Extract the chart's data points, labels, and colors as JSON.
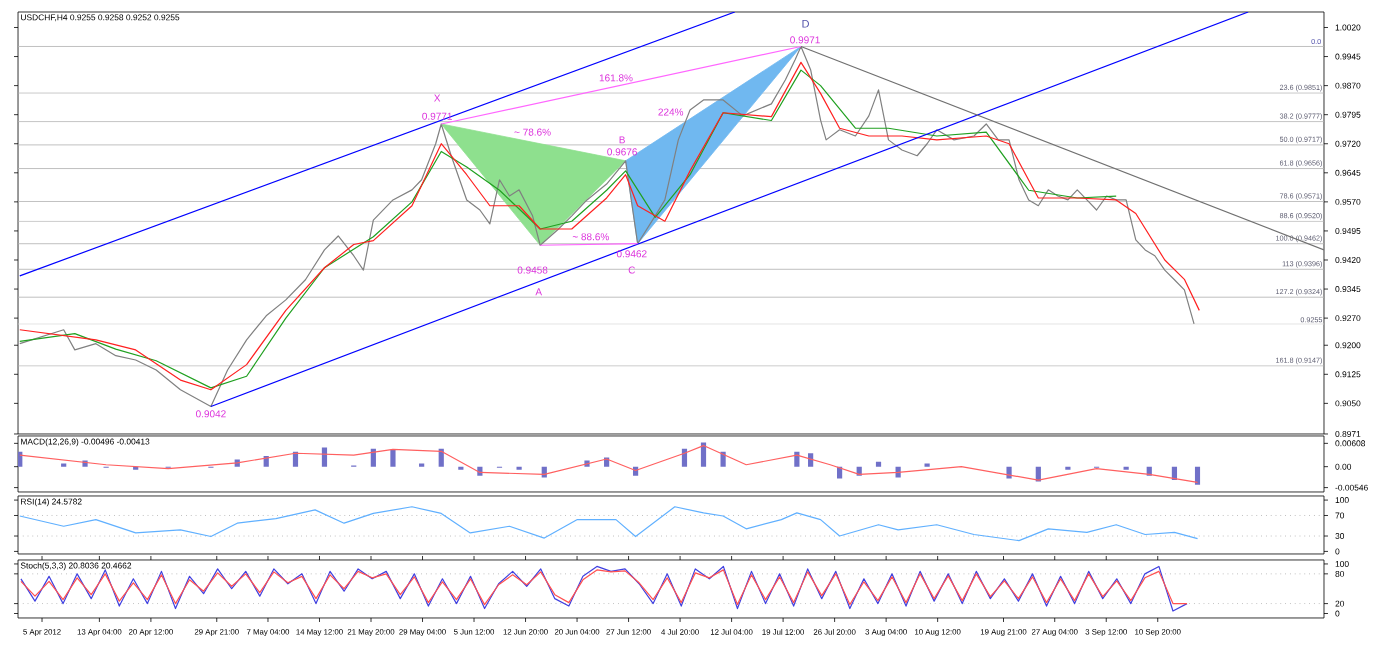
{
  "chart_data": [
    {
      "type": "line",
      "title": "USDCHF,H4 0.9255 0.9258 0.9252 0.9255",
      "xlim": [
        "2012-04-01T14:00",
        "2012-10-04T12:00"
      ],
      "ylim": [
        0.8971,
        1.006
      ],
      "tick_labels": "y",
      "yticks": [
        {
          "value": 1.002,
          "label": "1.0020"
        },
        0.9945,
        {
          "value": 0.987,
          "label": "0.9870"
        },
        0.9795,
        {
          "value": 0.972,
          "label": "0.9720"
        },
        0.9645,
        {
          "value": 0.957,
          "label": "0.9570"
        },
        0.9495,
        {
          "value": 0.942,
          "label": "0.9420"
        },
        0.9345,
        {
          "value": 0.927,
          "label": "0.9270"
        },
        {
          "value": 0.92,
          "label": "0.9200"
        },
        0.9125,
        {
          "value": 0.905,
          "label": "0.9050"
        },
        0.8971
      ],
      "series": [
        {
          "type": "area",
          "color": "#8ee08e",
          "x": [
            "2012-05-31T20:00",
            "2012-06-14T22:00",
            "2012-06-27T02:00"
          ],
          "values": [
            0.9771,
            0.9458,
            0.9676
          ]
        },
        {
          "type": "area",
          "color": "#70b8f0",
          "x": [
            "2012-06-27T02:00",
            "2012-06-28T19:00",
            "2012-07-22T01:00"
          ],
          "values": [
            0.9676,
            0.9462,
            0.9971
          ]
        },
        {
          "color": "#808080",
          "x": [
            "2012-04-01T20:00",
            "2012-04-08T02:00",
            "2012-04-09T16:00",
            "2012-04-12T16:00",
            "2012-04-15T12:00",
            "2012-04-18T08:00",
            "2012-04-21T06:00",
            "2012-04-24T17:00",
            "2012-04-29T01:00",
            "2012-05-01T10:00",
            "2012-05-04T03:00",
            "2012-05-06T22:00",
            "2012-05-09T17:00",
            "2012-05-12T12:00",
            "2012-05-15T05:00",
            "2012-05-17T04:00",
            "2012-05-19T09:00",
            "2012-05-20T18:00",
            "2012-05-22T04:00",
            "2012-05-24T23:00",
            "2012-05-27T16:00",
            "2012-05-29T01:00",
            "2012-05-31T01:00",
            "2012-05-31T20:00",
            "2012-06-02T06:00",
            "2012-06-04T11:00",
            "2012-06-06T08:00",
            "2012-06-07T18:00",
            "2012-06-09T03:00",
            "2012-06-10T13:00",
            "2012-06-11T22:00",
            "2012-06-13T20:00",
            "2012-06-14T22:00",
            "2012-06-17T10:00",
            "2012-06-19T10:00",
            "2012-06-21T14:00",
            "2012-06-24T09:00",
            "2012-06-27T02:00",
            "2012-06-28T19:00",
            "2012-07-01T07:00",
            "2012-07-02T16:00",
            "2012-07-04T14:00",
            "2012-07-06T06:00",
            "2012-07-08T04:00",
            "2012-07-10T23:00",
            "2012-07-13T18:00",
            "2012-07-17T20:00",
            "2012-07-19T20:00",
            "2012-07-21T05:00",
            "2012-07-22T01:00",
            "2012-07-23T10:00",
            "2012-07-24T20:00",
            "2012-07-25T15:00",
            "2012-07-27T13:00",
            "2012-07-29T19:00",
            "2012-07-31T17:00",
            "2012-08-02T02:00",
            "2012-08-03T12:00",
            "2012-08-05T10:00",
            "2012-08-07T14:00",
            "2012-08-09T00:00",
            "2012-08-10T09:00",
            "2012-08-12T20:00",
            "2012-08-15T16:00",
            "2012-08-17T10:00",
            "2012-08-19T03:00",
            "2012-08-20T16:00",
            "2012-08-22T02:00",
            "2012-08-23T11:00",
            "2012-08-24T20:00",
            "2012-08-26T06:00",
            "2012-08-27T15:00",
            "2012-08-29T01:00",
            "2012-08-30T09:00",
            "2012-08-31T18:00",
            "2012-09-02T03:00",
            "2012-09-03T13:00",
            "2012-09-04T22:00",
            "2012-09-06T08:00",
            "2012-09-07T17:00",
            "2012-09-09T01:00",
            "2012-09-10T10:00",
            "2012-09-11T20:00",
            "2012-09-13T05:00",
            "2012-09-14T15:00",
            "2012-09-16T00:00"
          ],
          "values": [
            0.9204,
            0.924,
            0.9188,
            0.9204,
            0.9173,
            0.9162,
            0.9136,
            0.9085,
            0.9042,
            0.9136,
            0.9214,
            0.9276,
            0.9317,
            0.9369,
            0.9446,
            0.9482,
            0.9431,
            0.9394,
            0.9523,
            0.9575,
            0.9601,
            0.9627,
            0.972,
            0.9771,
            0.9689,
            0.9575,
            0.9549,
            0.9513,
            0.9627,
            0.9585,
            0.9601,
            0.9534,
            0.9458,
            0.9498,
            0.9534,
            0.9575,
            0.9616,
            0.9676,
            0.9462,
            0.9534,
            0.9575,
            0.973,
            0.9807,
            0.9833,
            0.9833,
            0.9792,
            0.9823,
            0.9885,
            0.9937,
            0.9971,
            0.9911,
            0.9781,
            0.973,
            0.9756,
            0.974,
            0.9792,
            0.9859,
            0.973,
            0.9704,
            0.9689,
            0.972,
            0.9756,
            0.973,
            0.974,
            0.9771,
            0.973,
            0.973,
            0.9627,
            0.9575,
            0.956,
            0.9601,
            0.9585,
            0.9575,
            0.9601,
            0.9575,
            0.9549,
            0.9585,
            0.9575,
            0.9575,
            0.9472,
            0.9446,
            0.9431,
            0.9394,
            0.9369,
            0.9343,
            0.9255
          ]
        },
        {
          "color": "#20a020",
          "x": [
            "2012-04-01T20:00",
            "2012-04-09T16:00",
            "2012-04-15T12:00",
            "2012-04-21T06:00",
            "2012-04-29T01:00",
            "2012-05-04T03:00",
            "2012-05-09T17:00",
            "2012-05-15T05:00",
            "2012-05-22T04:00",
            "2012-05-27T16:00",
            "2012-05-31T20:00",
            "2012-06-04T11:00",
            "2012-06-09T03:00",
            "2012-06-14T22:00",
            "2012-06-19T10:00",
            "2012-06-24T09:00",
            "2012-06-27T02:00",
            "2012-07-01T07:00",
            "2012-07-06T06:00",
            "2012-07-10T23:00",
            "2012-07-17T20:00",
            "2012-07-22T01:00",
            "2012-07-24T20:00",
            "2012-07-29T19:00",
            "2012-08-03T12:00",
            "2012-08-10T09:00",
            "2012-08-17T10:00",
            "2012-08-23T11:00",
            "2012-08-30T09:00",
            "2012-09-04T22:00"
          ],
          "values": [
            0.921,
            0.923,
            0.919,
            0.916,
            0.909,
            0.912,
            0.927,
            0.94,
            0.948,
            0.957,
            0.97,
            0.966,
            0.96,
            0.95,
            0.952,
            0.96,
            0.965,
            0.953,
            0.964,
            0.98,
            0.978,
            0.991,
            0.987,
            0.976,
            0.976,
            0.974,
            0.975,
            0.96,
            0.958,
            0.9585
          ]
        },
        {
          "color": "#ff2020",
          "x": [
            "2012-04-01T20:00",
            "2012-04-12T16:00",
            "2012-04-18T08:00",
            "2012-04-24T17:00",
            "2012-04-29T01:00",
            "2012-05-04T03:00",
            "2012-05-09T17:00",
            "2012-05-15T05:00",
            "2012-05-19T09:00",
            "2012-05-22T04:00",
            "2012-05-27T16:00",
            "2012-05-31T20:00",
            "2012-06-04T11:00",
            "2012-06-07T18:00",
            "2012-06-11T22:00",
            "2012-06-14T22:00",
            "2012-06-19T10:00",
            "2012-06-24T09:00",
            "2012-06-27T02:00",
            "2012-06-28T19:00",
            "2012-07-02T16:00",
            "2012-07-06T06:00",
            "2012-07-10T23:00",
            "2012-07-17T20:00",
            "2012-07-22T01:00",
            "2012-07-24T20:00",
            "2012-07-27T13:00",
            "2012-07-31T17:00",
            "2012-08-05T10:00",
            "2012-08-10T09:00",
            "2012-08-17T10:00",
            "2012-08-20T16:00",
            "2012-08-24T20:00",
            "2012-08-30T09:00",
            "2012-09-04T22:00",
            "2012-09-07T17:00",
            "2012-09-11T20:00",
            "2012-09-14T15:00",
            "2012-09-16T18:00"
          ],
          "values": [
            0.924,
            0.9214,
            0.9188,
            0.911,
            0.9085,
            0.915,
            0.929,
            0.94,
            0.946,
            0.947,
            0.956,
            0.972,
            0.964,
            0.956,
            0.956,
            0.95,
            0.95,
            0.958,
            0.964,
            0.956,
            0.952,
            0.965,
            0.98,
            0.979,
            0.993,
            0.985,
            0.976,
            0.974,
            0.974,
            0.973,
            0.974,
            0.972,
            0.958,
            0.958,
            0.9575,
            0.954,
            0.942,
            0.937,
            0.929
          ]
        },
        {
          "color": "#0000ff",
          "x": [
            "2012-04-01T20:00",
            "2012-07-12T15:00"
          ],
          "values": [
            0.9379,
            1.006
          ]
        },
        {
          "color": "#0000ff",
          "x": [
            "2012-04-29T01:00",
            "2012-09-23T17:00"
          ],
          "values": [
            0.9042,
            1.006
          ]
        },
        {
          "color": "#707070",
          "x": [
            "2012-07-22T01:00",
            "2012-10-04T12:00"
          ],
          "values": [
            0.9971,
            0.9446
          ]
        },
        {
          "color": "#ff66ff",
          "x": [
            "2012-05-31T20:00",
            "2012-07-22T01:00"
          ],
          "values": [
            0.9771,
            0.9971
          ]
        },
        {
          "color": "#ff66ff",
          "x": [
            "2012-06-14T22:00",
            "2012-06-28T19:00"
          ],
          "values": [
            0.9458,
            0.9462
          ]
        }
      ],
      "ref_lines": [
        {
          "axis": "y",
          "value": 0.9971,
          "color": "#b0b0b0"
        },
        {
          "axis": "y",
          "value": 0.9851,
          "label": "23.6 (0.9851)",
          "color": "#b0b0b0"
        },
        {
          "axis": "y",
          "value": 0.9777,
          "label": "38.2 (0.9777)",
          "color": "#b0b0b0"
        },
        {
          "axis": "y",
          "value": 0.9717,
          "label": "50.0 (0.9717)",
          "color": "#b0b0b0"
        },
        {
          "axis": "y",
          "value": 0.9656,
          "label": "61.8 (0.9656)",
          "color": "#b0b0b0"
        },
        {
          "axis": "y",
          "value": 0.9571,
          "label": "78.6 (0.9571)",
          "color": "#b0b0b0"
        },
        {
          "axis": "y",
          "value": 0.952,
          "label": "88.6 (0.9520)",
          "color": "#b0b0b0"
        },
        {
          "axis": "y",
          "value": 0.9462,
          "label": "100.0 (0.9462)",
          "color": "#b0b0b0"
        },
        {
          "axis": "y",
          "value": 0.9396,
          "label": "113 (0.9396)",
          "color": "#b0b0b0"
        },
        {
          "axis": "y",
          "value": 0.9324,
          "label": "127.2 (0.9324)",
          "color": "#b0b0b0"
        },
        {
          "axis": "y",
          "value": 0.9147,
          "label": "161.8 (0.9147)",
          "color": "#b0b0b0"
        },
        {
          "axis": "y",
          "value": 0.9255,
          "label": "0.9255",
          "color": "#d8d8d8"
        }
      ],
      "annotations": [
        {
          "text": "X",
          "x": "2012-05-31T06:00",
          "y": 0.9838
        },
        {
          "text": "0.9771",
          "x": "2012-05-31T06:00",
          "y": 0.9791
        },
        {
          "text": "~ 78.6%",
          "x": "2012-06-13T20:00",
          "y": 0.975
        },
        {
          "text": "B",
          "x": "2012-06-26T14:00",
          "y": 0.973
        },
        {
          "text": "0.9676",
          "x": "2012-06-26T14:00",
          "y": 0.9699
        },
        {
          "text": "161.8%",
          "x": "2012-06-25T17:00",
          "y": 0.989
        },
        {
          "text": "224%",
          "x": "2012-07-03T12:00",
          "y": 0.9802
        },
        {
          "text": "~ 88.6%",
          "x": "2012-06-22T03:00",
          "y": 0.948
        },
        {
          "text": "0.9458",
          "x": "2012-06-13T20:00",
          "y": 0.9394
        },
        {
          "text": "A",
          "x": "2012-06-14T17:00",
          "y": 0.9338
        },
        {
          "text": "0.9462",
          "x": "2012-06-27T23:00",
          "y": 0.9436
        },
        {
          "text": "C",
          "x": "2012-06-27T23:00",
          "y": 0.9394
        },
        {
          "text": "0.9042",
          "x": "2012-04-29T01:00",
          "y": 0.9023
        },
        "D",
        "0.0",
        {
          "text": "0.9971",
          "x": "2012-07-22T15:00",
          "y": 0.9988
        }
      ]
    },
    {
      "type": "bar",
      "title": "MACD(12,26,9) -0.00496 -0.00413",
      "xlim": [
        "2012-04-01T14:00",
        "2012-10-04T12:00"
      ],
      "ylim": [
        -0.0066,
        0.008
      ],
      "tick_labels": "y",
      "yticks": [
        0.00608,
        {
          "value": 0,
          "label": "0.00"
        },
        -0.00546
      ],
      "series": [
        {
          "color": "#7070c8",
          "x": [
            "2012-04-01T20:00",
            "2012-04-08T02:00",
            "2012-04-11T03:00",
            "2012-04-14T03:00",
            "2012-04-18T08:00",
            "2012-04-22T23:00",
            "2012-04-29T01:00",
            "2012-05-02T19:00",
            "2012-05-06T22:00",
            "2012-05-11T02:00",
            "2012-05-15T05:00",
            "2012-05-19T09:00",
            "2012-05-22T04:00",
            "2012-05-24T23:00",
            "2012-05-29T01:00",
            "2012-05-31T20:00",
            "2012-06-03T15:00",
            "2012-06-06T08:00",
            "2012-06-09T03:00",
            "2012-06-11T22:00",
            "2012-06-15T12:00",
            "2012-06-18T19:00",
            "2012-06-21T14:00",
            "2012-06-24T09:00",
            "2012-06-28T12:00",
            "2012-07-02T16:00",
            "2012-07-05T11:00",
            "2012-07-08T04:00",
            "2012-07-10T23:00",
            "2012-07-14T06:00",
            "2012-07-19T06:00",
            "2012-07-21T11:00",
            "2012-07-23T10:00",
            "2012-07-26T05:00",
            "2012-07-27T13:00",
            "2012-07-30T08:00",
            "2012-08-02T02:00",
            "2012-08-04T21:00",
            "2012-08-09T00:00",
            "2012-08-13T21:00",
            "2012-08-20T16:00",
            "2012-08-24T20:00",
            "2012-08-29T01:00",
            "2012-09-02T03:00",
            "2012-09-06T08:00",
            "2012-09-09T15:00",
            "2012-09-13T05:00",
            "2012-09-16T12:00"
          ],
          "values": [
            0.0039,
            0.0008,
            0.0016,
            -0.0003,
            -0.0008,
            -0.0003,
            -0.0003,
            0.0019,
            0.0028,
            0.0039,
            0.005,
            0.0003,
            0.0047,
            0.0044,
            0.0008,
            0.0047,
            -0.0008,
            -0.0024,
            -0.0003,
            -0.0008,
            -0.0028,
            0.0,
            0.0016,
            0.0024,
            -0.0024,
            0.0,
            0.0047,
            0.0063,
            0.0039,
            0.0,
            0.0,
            0.0039,
            0.0035,
            0.0,
            -0.0031,
            -0.0024,
            0.0013,
            -0.0028,
            0.0008,
            0.0,
            -0.0031,
            -0.0039,
            -0.0008,
            -0.0003,
            -0.0008,
            -0.0024,
            -0.0035,
            -0.0047
          ]
        },
        {
          "type": "line",
          "color": "#ff6060",
          "x": [
            "2012-04-01T20:00",
            "2012-04-14T03:00",
            "2012-04-22T23:00",
            "2012-05-02T19:00",
            "2012-05-11T02:00",
            "2012-05-19T09:00",
            "2012-05-24T23:00",
            "2012-05-31T20:00",
            "2012-06-06T08:00",
            "2012-06-15T12:00",
            "2012-06-24T09:00",
            "2012-06-28T12:00",
            "2012-07-05T11:00",
            "2012-07-08T04:00",
            "2012-07-14T06:00",
            "2012-07-21T11:00",
            "2012-07-26T05:00",
            "2012-07-30T08:00",
            "2012-08-04T21:00",
            "2012-08-13T21:00",
            "2012-08-24T20:00",
            "2012-09-02T03:00",
            "2012-09-09T15:00",
            "2012-09-16T12:00"
          ],
          "values": [
            0.003,
            0.0005,
            -0.0005,
            0.001,
            0.0035,
            0.003,
            0.0045,
            0.004,
            -0.0015,
            -0.002,
            0.002,
            -0.001,
            0.0035,
            0.0055,
            0.0005,
            0.003,
            0.0005,
            -0.002,
            -0.0015,
            0.0,
            -0.0035,
            -0.0005,
            -0.002,
            -0.0041
          ]
        }
      ]
    },
    {
      "type": "line",
      "title": "RSI(14) 24.5782",
      "xlim": [
        "2012-04-01T14:00",
        "2012-10-04T12:00"
      ],
      "ylim": [
        -5,
        108
      ],
      "tick_labels": "y",
      "yticks": [
        100,
        70,
        30,
        0
      ],
      "series": [
        {
          "color": "#60b0ff",
          "x": [
            "2012-04-01T20:00",
            "2012-04-08T02:00",
            "2012-04-12T16:00",
            "2012-04-18T08:00",
            "2012-04-24T17:00",
            "2012-04-29T01:00",
            "2012-05-02T19:00",
            "2012-05-08T07:00",
            "2012-05-13T21:00",
            "2012-05-18T00:00",
            "2012-05-22T04:00",
            "2012-05-27T16:00",
            "2012-05-31T20:00",
            "2012-06-04T23:00",
            "2012-06-10T13:00",
            "2012-06-15T12:00",
            "2012-06-20T05:00",
            "2012-06-25T17:00",
            "2012-06-28T12:00",
            "2012-07-04T02:00",
            "2012-07-08T04:00",
            "2012-07-10T23:00",
            "2012-07-14T06:00",
            "2012-07-19T06:00",
            "2012-07-21T11:00",
            "2012-07-24T20:00",
            "2012-07-27T13:00",
            "2012-08-02T02:00",
            "2012-08-04T21:00",
            "2012-08-10T09:00",
            "2012-08-15T16:00",
            "2012-08-22T02:00",
            "2012-08-26T06:00",
            "2012-08-31T18:00",
            "2012-09-04T22:00",
            "2012-09-09T01:00",
            "2012-09-13T05:00",
            "2012-09-16T12:00"
          ],
          "values": [
            69,
            49,
            62,
            36,
            42,
            29,
            55,
            64,
            81,
            55,
            74,
            87,
            74,
            36,
            49,
            26,
            62,
            62,
            29,
            87,
            75,
            69,
            44,
            62,
            75,
            62,
            30,
            52,
            42,
            52,
            33,
            21,
            44,
            37,
            52,
            33,
            37,
            25
          ]
        }
      ],
      "ref_lines": [
        {
          "axis": "y",
          "value": 70,
          "color": "#a0a0a0",
          "line_style": "dotted"
        },
        {
          "axis": "y",
          "value": 30,
          "color": "#a0a0a0",
          "line_style": "dotted"
        }
      ]
    },
    {
      "type": "line",
      "title": "Stoch(5,3,3) 20.8036 20.4662",
      "xlim": [
        "2012-04-01T14:00",
        "2012-10-04T12:00"
      ],
      "ylim": [
        -9,
        108
      ],
      "yticks": [
        100,
        80,
        20,
        0
      ],
      "xticks": [
        {
          "value": "2012-04-05",
          "label": "5 Apr 2012"
        },
        {
          "value": "2012-04-13T04:00",
          "label": "13 Apr 04:00"
        },
        {
          "value": "2012-04-20T12:00",
          "label": "20 Apr 12:00"
        },
        {
          "value": "2012-04-29T21:00",
          "label": "29 Apr 21:00"
        },
        {
          "value": "2012-05-07T04:00",
          "label": "7 May 04:00"
        },
        {
          "value": "2012-05-14T12:00",
          "label": "14 May 12:00"
        },
        {
          "value": "2012-05-21T20:00",
          "label": "21 May 20:00"
        },
        {
          "value": "2012-05-29T04:00",
          "label": "29 May 04:00"
        },
        {
          "value": "2012-06-05T12:00",
          "label": "5 Jun 12:00"
        },
        {
          "value": "2012-06-12T20:00",
          "label": "12 Jun 20:00"
        },
        {
          "value": "2012-06-20T04:00",
          "label": "20 Jun 04:00"
        },
        {
          "value": "2012-06-27T12:00",
          "label": "27 Jun 12:00"
        },
        {
          "value": "2012-07-04T20:00",
          "label": "4 Jul 20:00"
        },
        {
          "value": "2012-07-12T04:00",
          "label": "12 Jul 04:00"
        },
        {
          "value": "2012-07-19T12:00",
          "label": "19 Jul 12:00"
        },
        {
          "value": "2012-07-26T20:00",
          "label": "26 Jul 20:00"
        },
        {
          "value": "2012-08-03T04:00",
          "label": "3 Aug 04:00"
        },
        {
          "value": "2012-08-10T12:00",
          "label": "10 Aug 12:00"
        },
        {
          "value": "2012-08-19T21:00",
          "label": "19 Aug 21:00"
        },
        {
          "value": "2012-08-27T04:00",
          "label": "27 Aug 04:00"
        },
        {
          "value": "2012-09-03T12:00",
          "label": "3 Sep 12:00"
        },
        {
          "value": "2012-09-10T20:00",
          "label": "10 Sep 20:00"
        }
      ],
      "x": [
        "2012-04-02",
        "2012-04-04",
        "2012-04-06",
        "2012-04-08",
        "2012-04-10",
        "2012-04-12",
        "2012-04-14",
        "2012-04-16",
        "2012-04-18",
        "2012-04-20",
        "2012-04-22",
        "2012-04-24",
        "2012-04-26",
        "2012-04-28",
        "2012-04-30",
        "2012-05-02",
        "2012-05-04",
        "2012-05-06",
        "2012-05-08",
        "2012-05-10",
        "2012-05-12",
        "2012-05-14",
        "2012-05-16",
        "2012-05-18",
        "2012-05-20",
        "2012-05-22",
        "2012-05-24",
        "2012-05-26",
        "2012-05-28",
        "2012-05-30",
        "2012-06-01",
        "2012-06-03",
        "2012-06-05",
        "2012-06-07",
        "2012-06-09",
        "2012-06-11",
        "2012-06-13",
        "2012-06-15",
        "2012-06-17",
        "2012-06-19",
        "2012-06-21",
        "2012-06-23",
        "2012-06-25",
        "2012-06-27",
        "2012-06-29",
        "2012-07-01",
        "2012-07-03",
        "2012-07-05",
        "2012-07-07",
        "2012-07-09",
        "2012-07-11",
        "2012-07-13",
        "2012-07-15",
        "2012-07-17",
        "2012-07-19",
        "2012-07-21",
        "2012-07-23",
        "2012-07-25",
        "2012-07-27",
        "2012-07-29",
        "2012-07-31",
        "2012-08-02",
        "2012-08-04",
        "2012-08-06",
        "2012-08-08",
        "2012-08-10",
        "2012-08-12",
        "2012-08-14",
        "2012-08-16",
        "2012-08-18",
        "2012-08-20",
        "2012-08-22",
        "2012-08-24",
        "2012-08-26",
        "2012-08-28",
        "2012-08-30",
        "2012-09-01",
        "2012-09-03",
        "2012-09-05",
        "2012-09-07",
        "2012-09-09",
        "2012-09-11",
        "2012-09-13",
        "2012-09-15"
      ],
      "series": [
        {
          "color": "#4040e0",
          "values": [
            70,
            25,
            75,
            20,
            80,
            30,
            88,
            15,
            70,
            20,
            85,
            10,
            75,
            40,
            90,
            50,
            85,
            35,
            90,
            60,
            80,
            20,
            85,
            45,
            90,
            70,
            85,
            30,
            80,
            15,
            70,
            20,
            75,
            10,
            60,
            85,
            55,
            90,
            30,
            15,
            75,
            95,
            85,
            90,
            60,
            20,
            80,
            15,
            90,
            70,
            95,
            10,
            85,
            20,
            80,
            15,
            90,
            30,
            85,
            10,
            70,
            20,
            80,
            15,
            85,
            25,
            80,
            20,
            85,
            30,
            70,
            25,
            80,
            15,
            75,
            20,
            85,
            30,
            70,
            20,
            80,
            95,
            5,
            20
          ]
        },
        {
          "color": "#ff5050",
          "values": [
            65,
            35,
            65,
            28,
            72,
            38,
            80,
            25,
            62,
            28,
            78,
            20,
            68,
            45,
            82,
            55,
            80,
            42,
            84,
            62,
            75,
            30,
            78,
            50,
            85,
            72,
            80,
            38,
            74,
            22,
            64,
            28,
            70,
            18,
            58,
            78,
            58,
            84,
            38,
            22,
            68,
            88,
            84,
            86,
            62,
            28,
            72,
            22,
            82,
            72,
            88,
            18,
            78,
            28,
            74,
            22,
            84,
            36,
            80,
            18,
            64,
            26,
            74,
            22,
            80,
            30,
            76,
            26,
            80,
            34,
            66,
            30,
            74,
            22,
            70,
            26,
            80,
            34,
            66,
            26,
            72,
            85,
            20,
            20
          ]
        }
      ],
      "ref_lines": [
        {
          "axis": "y",
          "value": 80,
          "color": "#a0a0a0",
          "line_style": "dotted"
        },
        {
          "axis": "y",
          "value": 20,
          "color": "#a0a0a0",
          "line_style": "dotted"
        }
      ]
    }
  ]
}
